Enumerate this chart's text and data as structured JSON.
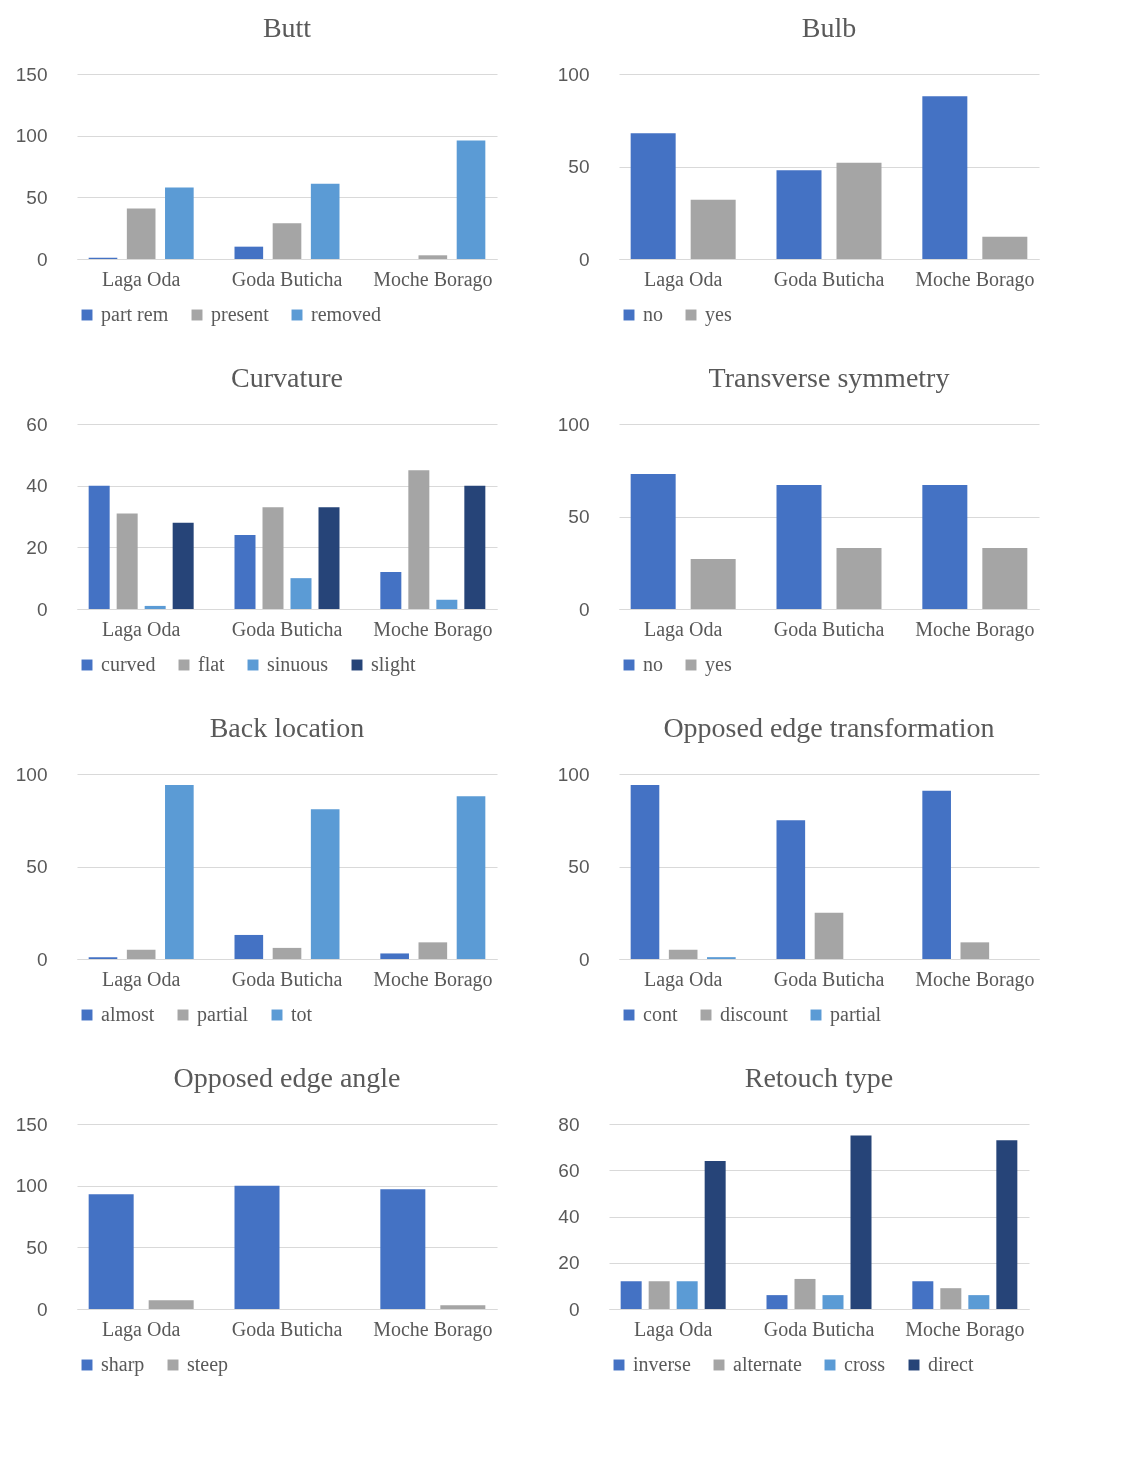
{
  "chart_data": [
    {
      "type": "bar",
      "title": "Butt",
      "categories": [
        "Laga Oda",
        "Goda Buticha",
        "Moche Borago"
      ],
      "ylim": [
        0,
        150
      ],
      "yticks": [
        0,
        50,
        100,
        150
      ],
      "grid": "y",
      "legend": "bottom",
      "series": [
        {
          "name": "part rem",
          "color": "#4472c4",
          "values": [
            1,
            10,
            0
          ]
        },
        {
          "name": "present",
          "color": "#a5a5a5",
          "values": [
            41,
            29,
            3
          ]
        },
        {
          "name": "removed",
          "color": "#5b9bd5",
          "values": [
            58,
            61,
            96
          ]
        }
      ]
    },
    {
      "type": "bar",
      "title": "Bulb",
      "categories": [
        "Laga Oda",
        "Goda Buticha",
        "Moche Borago"
      ],
      "ylim": [
        0,
        100
      ],
      "yticks": [
        0,
        50,
        100
      ],
      "grid": "y",
      "legend": "bottom",
      "series": [
        {
          "name": "no",
          "color": "#4472c4",
          "values": [
            68,
            48,
            88
          ]
        },
        {
          "name": "yes",
          "color": "#a5a5a5",
          "values": [
            32,
            52,
            12
          ]
        }
      ]
    },
    {
      "type": "bar",
      "title": "Curvature",
      "categories": [
        "Laga Oda",
        "Goda Buticha",
        "Moche Borago"
      ],
      "ylim": [
        0,
        60
      ],
      "yticks": [
        0,
        20,
        40,
        60
      ],
      "grid": "y",
      "legend": "bottom",
      "series": [
        {
          "name": "curved",
          "color": "#4472c4",
          "values": [
            40,
            24,
            12
          ]
        },
        {
          "name": "flat",
          "color": "#a5a5a5",
          "values": [
            31,
            33,
            45
          ]
        },
        {
          "name": "sinuous",
          "color": "#5b9bd5",
          "values": [
            1,
            10,
            3
          ]
        },
        {
          "name": "slight",
          "color": "#264478",
          "values": [
            28,
            33,
            40
          ]
        }
      ]
    },
    {
      "type": "bar",
      "title": "Transverse symmetry",
      "categories": [
        "Laga Oda",
        "Goda Buticha",
        "Moche Borago"
      ],
      "ylim": [
        0,
        100
      ],
      "yticks": [
        0,
        50,
        100
      ],
      "grid": "y",
      "legend": "bottom",
      "series": [
        {
          "name": "no",
          "color": "#4472c4",
          "values": [
            73,
            67,
            67
          ]
        },
        {
          "name": "yes",
          "color": "#a5a5a5",
          "values": [
            27,
            33,
            33
          ]
        }
      ]
    },
    {
      "type": "bar",
      "title": "Back location",
      "categories": [
        "Laga Oda",
        "Goda Buticha",
        "Moche Borago"
      ],
      "ylim": [
        0,
        100
      ],
      "yticks": [
        0,
        50,
        100
      ],
      "grid": "y",
      "legend": "bottom",
      "series": [
        {
          "name": "almost",
          "color": "#4472c4",
          "values": [
            1,
            13,
            3
          ]
        },
        {
          "name": "partial",
          "color": "#a5a5a5",
          "values": [
            5,
            6,
            9
          ]
        },
        {
          "name": "tot",
          "color": "#5b9bd5",
          "values": [
            94,
            81,
            88
          ]
        }
      ]
    },
    {
      "type": "bar",
      "title": "Opposed edge transformation",
      "categories": [
        "Laga Oda",
        "Goda Buticha",
        "Moche Borago"
      ],
      "ylim": [
        0,
        100
      ],
      "yticks": [
        0,
        50,
        100
      ],
      "grid": "y",
      "legend": "bottom",
      "series": [
        {
          "name": "cont",
          "color": "#4472c4",
          "values": [
            94,
            75,
            91
          ]
        },
        {
          "name": "discount",
          "color": "#a5a5a5",
          "values": [
            5,
            25,
            9
          ]
        },
        {
          "name": "partial",
          "color": "#5b9bd5",
          "values": [
            1,
            0,
            0
          ]
        }
      ]
    },
    {
      "type": "bar",
      "title": "Opposed edge angle",
      "categories": [
        "Laga Oda",
        "Goda Buticha",
        "Moche Borago"
      ],
      "ylim": [
        0,
        150
      ],
      "yticks": [
        0,
        50,
        100,
        150
      ],
      "grid": "y",
      "legend": "bottom",
      "series": [
        {
          "name": "sharp",
          "color": "#4472c4",
          "values": [
            93,
            100,
            97
          ]
        },
        {
          "name": "steep",
          "color": "#a5a5a5",
          "values": [
            7,
            0,
            3
          ]
        }
      ]
    },
    {
      "type": "bar",
      "title": "Retouch type",
      "categories": [
        "Laga Oda",
        "Goda Buticha",
        "Moche Borago"
      ],
      "ylim": [
        0,
        80
      ],
      "yticks": [
        0,
        20,
        40,
        60,
        80
      ],
      "grid": "y",
      "legend": "bottom",
      "series": [
        {
          "name": "inverse",
          "color": "#4472c4",
          "values": [
            12,
            6,
            12
          ]
        },
        {
          "name": "alternate",
          "color": "#a5a5a5",
          "values": [
            12,
            13,
            9
          ]
        },
        {
          "name": "cross",
          "color": "#5b9bd5",
          "values": [
            12,
            6,
            6
          ]
        },
        {
          "name": "direct",
          "color": "#264478",
          "values": [
            64,
            75,
            73
          ]
        }
      ]
    }
  ]
}
